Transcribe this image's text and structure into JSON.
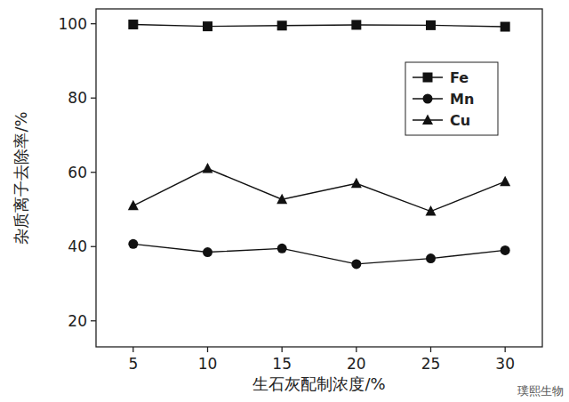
{
  "chart_data": {
    "type": "line",
    "x_label": "生石灰配制浓度/%",
    "y_label": "杂质离子去除率/%",
    "x": [
      5,
      10,
      15,
      20,
      25,
      30
    ],
    "xlim": [
      2.5,
      32.5
    ],
    "xticks": [
      5,
      10,
      15,
      20,
      25,
      30
    ],
    "ylim": [
      13,
      104
    ],
    "yticks": [
      20,
      40,
      60,
      80,
      100
    ],
    "grid": false,
    "legend": "top-right",
    "series": [
      {
        "name": "Fe",
        "color": "#111111",
        "marker": "square",
        "line_style": "solid",
        "values": [
          99.8,
          99.3,
          99.5,
          99.7,
          99.6,
          99.2
        ]
      },
      {
        "name": "Mn",
        "color": "#111111",
        "marker": "circle",
        "line_style": "solid",
        "values": [
          40.7,
          38.5,
          39.5,
          35.3,
          36.8,
          39.0
        ]
      },
      {
        "name": "Cu",
        "color": "#111111",
        "marker": "triangle",
        "line_style": "solid",
        "values": [
          51.0,
          61.0,
          52.7,
          57.0,
          49.5,
          57.5
        ]
      }
    ],
    "annotations": [
      "璞熙生物"
    ]
  }
}
